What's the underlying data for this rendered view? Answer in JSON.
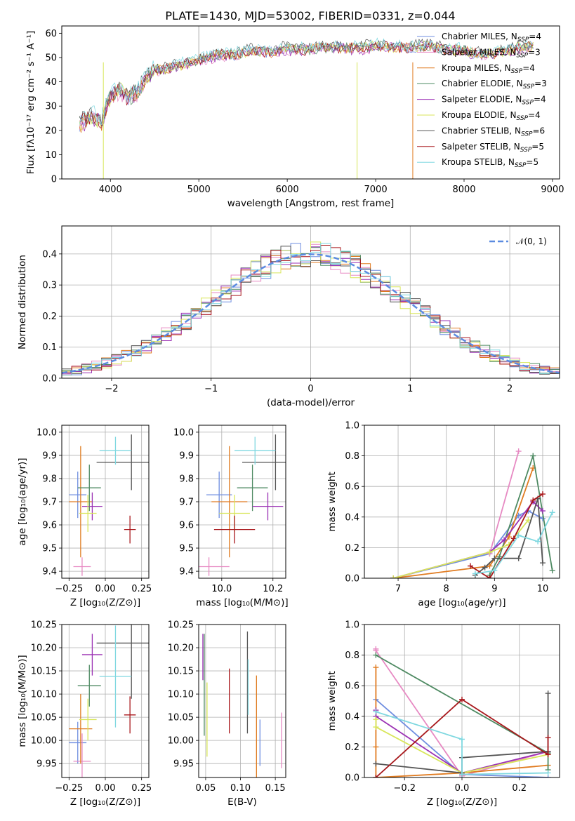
{
  "title": "PLATE=1430, MJD=53002, FIBERID=0331, z=0.044",
  "colors": [
    "#6f8ee0",
    "#e78ac3",
    "#e07b20",
    "#4e8a62",
    "#9b31b4",
    "#d8e65a",
    "#555555",
    "#a8171b",
    "#7fd8e0"
  ],
  "chart_data": [
    {
      "id": "spectrum",
      "type": "line",
      "xlabel": "wavelength [Angstrom, rest frame]",
      "ylabel": "Flux [fλ10⁻¹⁷ erg cm⁻² s⁻¹ A⁻¹]",
      "xlim": [
        3450,
        9080
      ],
      "ylim": [
        0,
        63
      ],
      "xticks": [
        4000,
        5000,
        6000,
        7000,
        8000,
        9000
      ],
      "yticks": [
        0,
        10,
        20,
        30,
        40,
        50,
        60
      ],
      "grid": false,
      "legend_position": "upper-right",
      "x": [
        3650,
        3800,
        3900,
        3950,
        4000,
        4100,
        4200,
        4300,
        4400,
        4500,
        4600,
        4800,
        5000,
        5200,
        5400,
        5600,
        5800,
        6000,
        6200,
        6400,
        6600,
        6800,
        7000,
        7200,
        7400,
        7600,
        7800,
        8000,
        8200,
        8400,
        8600,
        8800
      ],
      "series": [
        {
          "name": "Chabrier MILES, N_SSP=4",
          "values": [
            23,
            26,
            24,
            29,
            34,
            37,
            33,
            36,
            41,
            45,
            45,
            47,
            49,
            51,
            51,
            53,
            52,
            54,
            53,
            54,
            54,
            54,
            55,
            54,
            54,
            55,
            53,
            53,
            51,
            52,
            54,
            55
          ]
        },
        {
          "name": "Salpeter MILES, N_SSP=3",
          "values": [
            22,
            25,
            23,
            28,
            33,
            36,
            33,
            35,
            40,
            44,
            45,
            47,
            48,
            50,
            51,
            52,
            52,
            53,
            53,
            54,
            54,
            53,
            54,
            54,
            54,
            55,
            53,
            52,
            51,
            52,
            53,
            54
          ]
        },
        {
          "name": "Kroupa MILES, N_SSP=4",
          "values": [
            22,
            25,
            23,
            29,
            34,
            37,
            33,
            36,
            41,
            45,
            45,
            47,
            49,
            51,
            51,
            53,
            52,
            54,
            53,
            54,
            54,
            54,
            55,
            54,
            54,
            55,
            53,
            53,
            51,
            52,
            54,
            55
          ]
        },
        {
          "name": "Chabrier ELODIE, N_SSP=3",
          "values": [
            23,
            26,
            24,
            29,
            34,
            37,
            33,
            36,
            41,
            45,
            45,
            47,
            49,
            51,
            51,
            53,
            52,
            54,
            53,
            54,
            54,
            54,
            55,
            54,
            54,
            55,
            53,
            53,
            51,
            52,
            54,
            55
          ]
        },
        {
          "name": "Salpeter ELODIE, N_SSP=4",
          "values": [
            22,
            25,
            23,
            28,
            33,
            36,
            33,
            35,
            40,
            44,
            45,
            47,
            48,
            50,
            51,
            52,
            52,
            53,
            53,
            54,
            54,
            53,
            54,
            54,
            54,
            55,
            53,
            52,
            51,
            52,
            53,
            54
          ]
        },
        {
          "name": "Kroupa ELODIE, N_SSP=4",
          "values": [
            22,
            25,
            23,
            29,
            34,
            37,
            33,
            36,
            41,
            45,
            45,
            47,
            49,
            51,
            51,
            53,
            52,
            54,
            53,
            54,
            54,
            54,
            55,
            54,
            54,
            55,
            53,
            53,
            51,
            52,
            54,
            55
          ]
        },
        {
          "name": "Chabrier STELIB, N_SSP=6",
          "values": [
            24,
            27,
            24,
            30,
            35,
            38,
            34,
            37,
            42,
            46,
            46,
            48,
            50,
            52,
            52,
            54,
            53,
            55,
            54,
            55,
            55,
            55,
            56,
            55,
            55,
            56,
            54,
            54,
            52,
            53,
            55,
            56
          ]
        },
        {
          "name": "Salpeter STELIB, N_SSP=5",
          "values": [
            23,
            26,
            24,
            29,
            34,
            37,
            33,
            36,
            41,
            45,
            45,
            47,
            49,
            51,
            51,
            53,
            52,
            54,
            53,
            54,
            54,
            54,
            55,
            54,
            54,
            55,
            53,
            53,
            51,
            52,
            54,
            55
          ]
        },
        {
          "name": "Kroupa STELIB, N_SSP=5",
          "values": [
            23,
            27,
            25,
            30,
            35,
            38,
            34,
            37,
            42,
            46,
            46,
            48,
            50,
            52,
            52,
            54,
            53,
            55,
            54,
            55,
            55,
            55,
            56,
            55,
            55,
            56,
            54,
            54,
            52,
            53,
            55,
            56
          ]
        }
      ]
    },
    {
      "id": "residual-hist",
      "type": "step",
      "xlabel": "(data-model)/error",
      "ylabel": "Normed distribution",
      "xlim": [
        -2.5,
        2.5
      ],
      "ylim": [
        0,
        0.49
      ],
      "xticks": [
        -2,
        -1,
        0,
        1,
        2
      ],
      "yticks": [
        0.0,
        0.1,
        0.2,
        0.3,
        0.4
      ],
      "grid": true,
      "legend_position": "upper-right",
      "legend": "𝒩(0, 1)",
      "bin_width": 0.1
    },
    {
      "id": "age-vs-Z",
      "type": "errorbar",
      "xlabel": "Z [log₁₀(Z/Z⊙)]",
      "ylabel": "age  [log₁₀(age/yr)]",
      "xlim": [
        -0.3,
        0.3
      ],
      "ylim": [
        9.37,
        10.03
      ],
      "xticks": [
        -0.25,
        0.0,
        0.25
      ],
      "yticks": [
        9.4,
        9.5,
        9.6,
        9.7,
        9.8,
        9.9,
        10.0
      ],
      "grid": true,
      "points": [
        {
          "x": -0.19,
          "xerr": 0.06,
          "y": 9.73,
          "yerr": 0.1
        },
        {
          "x": -0.16,
          "xerr": 0.06,
          "y": 9.42,
          "yerr": 0.04
        },
        {
          "x": -0.17,
          "xerr": 0.08,
          "y": 9.7,
          "yerr": 0.24
        },
        {
          "x": -0.11,
          "xerr": 0.08,
          "y": 9.76,
          "yerr": 0.1
        },
        {
          "x": -0.09,
          "xerr": 0.07,
          "y": 9.68,
          "yerr": 0.06
        },
        {
          "x": -0.12,
          "xerr": 0.06,
          "y": 9.65,
          "yerr": 0.08
        },
        {
          "x": 0.18,
          "xerr": 0.24,
          "y": 9.87,
          "yerr": 0.12
        },
        {
          "x": 0.17,
          "xerr": 0.04,
          "y": 9.58,
          "yerr": 0.06
        },
        {
          "x": 0.07,
          "xerr": 0.11,
          "y": 9.92,
          "yerr": 0.06
        }
      ]
    },
    {
      "id": "age-vs-mass",
      "type": "errorbar",
      "xlabel": "mass [log₁₀(M/M⊙)]",
      "ylabel": "",
      "xlim": [
        9.91,
        10.25
      ],
      "ylim": [
        9.37,
        10.03
      ],
      "xticks": [
        10.0,
        10.2
      ],
      "yticks": [
        9.4,
        9.5,
        9.6,
        9.7,
        9.8,
        9.9,
        10.0
      ],
      "grid": true,
      "points": [
        {
          "x": 9.99,
          "xerr": 0.05,
          "y": 9.73,
          "yerr": 0.1
        },
        {
          "x": 9.95,
          "xerr": 0.08,
          "y": 9.42,
          "yerr": 0.04
        },
        {
          "x": 10.03,
          "xerr": 0.07,
          "y": 9.7,
          "yerr": 0.24
        },
        {
          "x": 10.12,
          "xerr": 0.06,
          "y": 9.76,
          "yerr": 0.1
        },
        {
          "x": 10.18,
          "xerr": 0.06,
          "y": 9.68,
          "yerr": 0.06
        },
        {
          "x": 10.05,
          "xerr": 0.06,
          "y": 9.65,
          "yerr": 0.08
        },
        {
          "x": 10.21,
          "xerr": 0.13,
          "y": 9.87,
          "yerr": 0.12
        },
        {
          "x": 10.05,
          "xerr": 0.08,
          "y": 9.58,
          "yerr": 0.06
        },
        {
          "x": 10.13,
          "xerr": 0.08,
          "y": 9.92,
          "yerr": 0.06
        }
      ]
    },
    {
      "id": "mass-weight-vs-age",
      "type": "line",
      "xlabel": "age  [log₁₀(age/yr)]",
      "ylabel": "mass weight",
      "xlim": [
        6.3,
        10.35
      ],
      "ylim": [
        0,
        1.0
      ],
      "xticks": [
        7,
        8,
        9,
        10
      ],
      "yticks": [
        0.0,
        0.2,
        0.4,
        0.6,
        0.8,
        1.0
      ],
      "grid": true,
      "series": [
        {
          "x": [
            6.9,
            8.9,
            9.5,
            9.7,
            10.0
          ],
          "values": [
            0.0,
            0.16,
            0.41,
            0.44,
            0.39
          ]
        },
        {
          "x": [
            8.9,
            9.5
          ],
          "values": [
            0.16,
            0.83
          ]
        },
        {
          "x": [
            6.9,
            8.9,
            9.3,
            9.8
          ],
          "values": [
            0.0,
            0.08,
            0.27,
            0.72
          ]
        },
        {
          "x": [
            8.9,
            9.1,
            9.8,
            10.2
          ],
          "values": [
            0.02,
            0.14,
            0.8,
            0.05
          ]
        },
        {
          "x": [
            6.9,
            8.9,
            9.2,
            9.8,
            10.0
          ],
          "values": [
            0.0,
            0.17,
            0.25,
            0.5,
            0.44
          ]
        },
        {
          "x": [
            6.9,
            8.9,
            9.3,
            9.7
          ],
          "values": [
            0.0,
            0.17,
            0.22,
            0.38
          ]
        },
        {
          "x": [
            8.6,
            8.8,
            9.0,
            9.5,
            9.9,
            10.0
          ],
          "values": [
            0.02,
            0.07,
            0.13,
            0.13,
            0.52,
            0.1
          ]
        },
        {
          "x": [
            8.5,
            8.9,
            9.4,
            9.8,
            10.0
          ],
          "values": [
            0.08,
            0.0,
            0.26,
            0.51,
            0.55
          ]
        },
        {
          "x": [
            8.6,
            9.0,
            9.5,
            9.9,
            10.2
          ],
          "values": [
            0.03,
            0.05,
            0.28,
            0.24,
            0.43
          ]
        }
      ]
    },
    {
      "id": "mass-vs-Z",
      "type": "errorbar",
      "xlabel": "Z [log₁₀(Z/Z⊙)]",
      "ylabel": "mass [log₁₀(M/M⊙)]",
      "xlim": [
        -0.3,
        0.3
      ],
      "ylim": [
        9.92,
        10.25
      ],
      "xticks": [
        -0.25,
        0.0,
        0.25
      ],
      "yticks": [
        9.95,
        10.0,
        10.05,
        10.1,
        10.15,
        10.2,
        10.25
      ],
      "grid": true,
      "points": [
        {
          "x": -0.19,
          "xerr": 0.06,
          "y": 9.995,
          "yerr": 0.045
        },
        {
          "x": -0.16,
          "xerr": 0.06,
          "y": 9.955,
          "yerr": 0.06
        },
        {
          "x": -0.17,
          "xerr": 0.08,
          "y": 10.025,
          "yerr": 0.075
        },
        {
          "x": -0.11,
          "xerr": 0.08,
          "y": 10.118,
          "yerr": 0.045
        },
        {
          "x": -0.09,
          "xerr": 0.07,
          "y": 10.185,
          "yerr": 0.045
        },
        {
          "x": -0.12,
          "xerr": 0.06,
          "y": 10.045,
          "yerr": 0.045
        },
        {
          "x": 0.18,
          "xerr": 0.24,
          "y": 10.21,
          "yerr": 0.12
        },
        {
          "x": 0.17,
          "xerr": 0.04,
          "y": 10.055,
          "yerr": 0.04
        },
        {
          "x": 0.07,
          "xerr": 0.11,
          "y": 10.138,
          "yerr": 0.11
        }
      ]
    },
    {
      "id": "mass-vs-EBV",
      "type": "errorbar",
      "xlabel": "E(B-V)",
      "ylabel": "",
      "xlim": [
        0.04,
        0.165
      ],
      "ylim": [
        9.92,
        10.25
      ],
      "xticks": [
        0.05,
        0.1,
        0.15
      ],
      "yticks": [
        9.95,
        10.0,
        10.05,
        10.1,
        10.15,
        10.2,
        10.25
      ],
      "grid": true,
      "points": [
        {
          "x": 0.128,
          "xerr": 0,
          "y": 9.995,
          "yerr": 0.05
        },
        {
          "x": 0.159,
          "xerr": 0,
          "y": 10.0,
          "yerr": 0.06
        },
        {
          "x": 0.123,
          "xerr": 0,
          "y": 10.03,
          "yerr": 0.11
        },
        {
          "x": 0.048,
          "xerr": 0,
          "y": 10.12,
          "yerr": 0.11
        },
        {
          "x": 0.046,
          "xerr": 0,
          "y": 10.18,
          "yerr": 0.05
        },
        {
          "x": 0.052,
          "xerr": 0,
          "y": 10.045,
          "yerr": 0.08
        },
        {
          "x": 0.11,
          "xerr": 0,
          "y": 10.125,
          "yerr": 0.11
        },
        {
          "x": 0.084,
          "xerr": 0,
          "y": 10.085,
          "yerr": 0.07
        },
        {
          "x": 0.111,
          "xerr": 0,
          "y": 10.115,
          "yerr": 0.06
        }
      ]
    },
    {
      "id": "mass-weight-vs-Z",
      "type": "line",
      "xlabel": "Z [log₁₀(Z/Z⊙)]",
      "ylabel": "mass weight",
      "xlim": [
        -0.34,
        0.34
      ],
      "ylim": [
        0,
        1.0
      ],
      "xticks": [
        -0.2,
        0.0,
        0.2
      ],
      "yticks": [
        0.0,
        0.2,
        0.4,
        0.6,
        0.8,
        1.0
      ],
      "grid": true,
      "series": [
        {
          "x": [
            -0.3,
            0.0,
            0.3
          ],
          "values": [
            0.51,
            0.02,
            0.0
          ]
        },
        {
          "x": [
            -0.3,
            -0.3,
            0.0,
            0.3
          ],
          "values": [
            0.84,
            0.83,
            0.01,
            0.17
          ]
        },
        {
          "x": [
            -0.3,
            -0.3,
            -0.3,
            0.0,
            0.3
          ],
          "values": [
            0.72,
            0.2,
            0.0,
            0.03,
            0.08
          ]
        },
        {
          "x": [
            -0.3,
            0.3,
            0.3
          ],
          "values": [
            0.8,
            0.16,
            0.05
          ]
        },
        {
          "x": [
            -0.3,
            -0.3,
            0.0,
            0.3
          ],
          "values": [
            0.44,
            0.4,
            0.03,
            0.17
          ]
        },
        {
          "x": [
            -0.3,
            -0.3,
            0.0,
            0.3
          ],
          "values": [
            0.38,
            0.33,
            0.03,
            0.15
          ]
        },
        {
          "x": [
            -0.3,
            0.0,
            0.0,
            0.3,
            0.3
          ],
          "values": [
            0.09,
            0.03,
            0.13,
            0.17,
            0.55
          ]
        },
        {
          "x": [
            -0.3,
            0.0,
            0.3,
            0.3
          ],
          "values": [
            0.0,
            0.51,
            0.15,
            0.26
          ]
        },
        {
          "x": [
            -0.3,
            0.0,
            0.0,
            0.3
          ],
          "values": [
            0.43,
            0.25,
            0.02,
            0.03
          ]
        }
      ]
    }
  ]
}
